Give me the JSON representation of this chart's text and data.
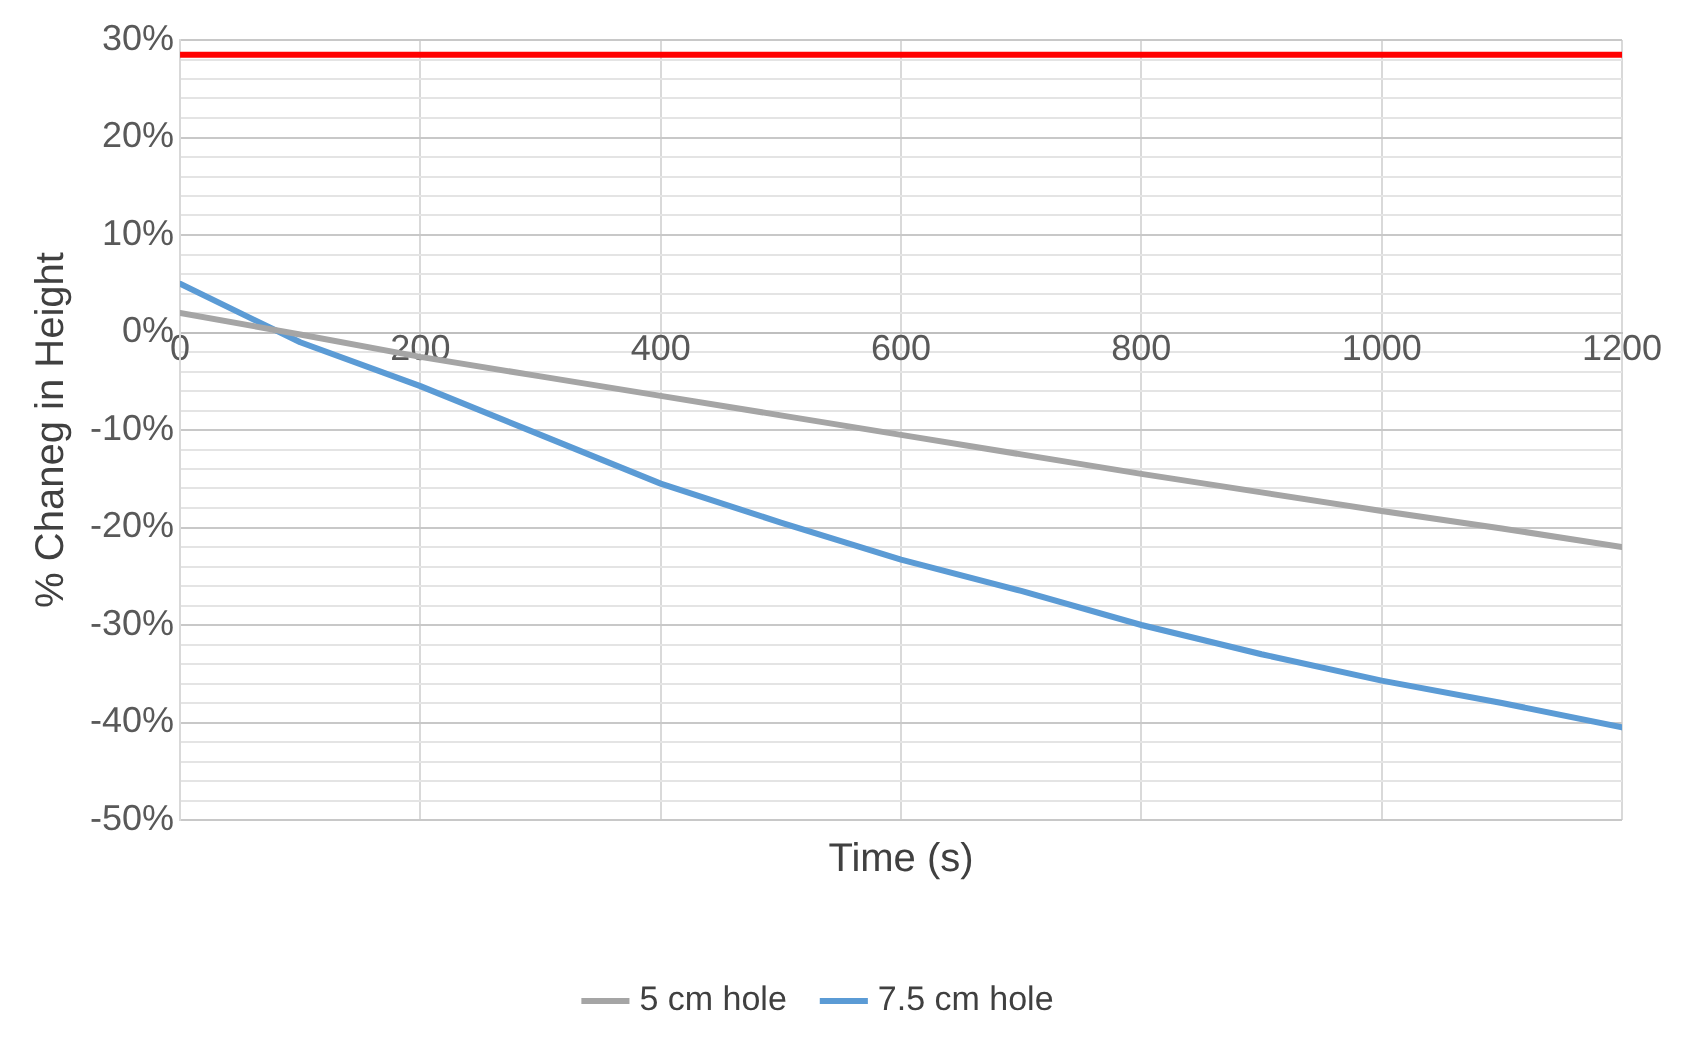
{
  "chart_data": {
    "type": "line",
    "xlabel": "Time (s)",
    "ylabel": "% Chaneg in Height",
    "x": [
      0,
      100,
      200,
      300,
      400,
      500,
      600,
      700,
      800,
      900,
      1000,
      1100,
      1200
    ],
    "series": [
      {
        "name": "5 cm hole",
        "color": "#a5a5a5",
        "values": [
          2,
          -0.2,
          -2.5,
          -4.5,
          -6.5,
          -8.5,
          -10.5,
          -12.5,
          -14.5,
          -16.4,
          -18.3,
          -20.1,
          -22
        ]
      },
      {
        "name": "7.5 cm hole",
        "color": "#5b9bd5",
        "values": [
          5,
          -1,
          -5.5,
          -10.5,
          -15.5,
          -19.5,
          -23.3,
          -26.5,
          -30,
          -33,
          -35.7,
          -38,
          -40.5
        ]
      }
    ],
    "ref_lines": [
      {
        "axis": "y",
        "value": 28.5,
        "color": "#ff0000"
      }
    ],
    "xlim": [
      0,
      1200
    ],
    "xticks": [
      0,
      200,
      400,
      600,
      800,
      1000,
      1200
    ],
    "ylim": [
      -50,
      30
    ],
    "yticks": [
      {
        "value": -50,
        "label": "-50%"
      },
      {
        "value": -48,
        "label": null
      },
      {
        "value": -46,
        "label": null
      },
      {
        "value": -44,
        "label": null
      },
      {
        "value": -42,
        "label": null
      },
      {
        "value": -40,
        "label": "-40%"
      },
      {
        "value": -38,
        "label": null
      },
      {
        "value": -36,
        "label": null
      },
      {
        "value": -34,
        "label": null
      },
      {
        "value": -32,
        "label": null
      },
      {
        "value": -30,
        "label": "-30%"
      },
      {
        "value": -28,
        "label": null
      },
      {
        "value": -26,
        "label": null
      },
      {
        "value": -24,
        "label": null
      },
      {
        "value": -22,
        "label": null
      },
      {
        "value": -20,
        "label": "-20%"
      },
      {
        "value": -18,
        "label": null
      },
      {
        "value": -16,
        "label": null
      },
      {
        "value": -14,
        "label": null
      },
      {
        "value": -12,
        "label": null
      },
      {
        "value": -10,
        "label": "-10%"
      },
      {
        "value": -8,
        "label": null
      },
      {
        "value": -6,
        "label": null
      },
      {
        "value": -4,
        "label": null
      },
      {
        "value": -2,
        "label": null
      },
      {
        "value": 0,
        "label": "0%"
      },
      {
        "value": 2,
        "label": null
      },
      {
        "value": 4,
        "label": null
      },
      {
        "value": 6,
        "label": null
      },
      {
        "value": 8,
        "label": null
      },
      {
        "value": 10,
        "label": "10%"
      },
      {
        "value": 12,
        "label": null
      },
      {
        "value": 14,
        "label": null
      },
      {
        "value": 16,
        "label": null
      },
      {
        "value": 18,
        "label": null
      },
      {
        "value": 20,
        "label": "20%"
      },
      {
        "value": 22,
        "label": null
      },
      {
        "value": 24,
        "label": null
      },
      {
        "value": 26,
        "label": null
      },
      {
        "value": 28,
        "label": null
      },
      {
        "value": 30,
        "label": "30%"
      }
    ],
    "grid": true,
    "legend": "bottom",
    "marker": "none",
    "line_style": "solid"
  }
}
